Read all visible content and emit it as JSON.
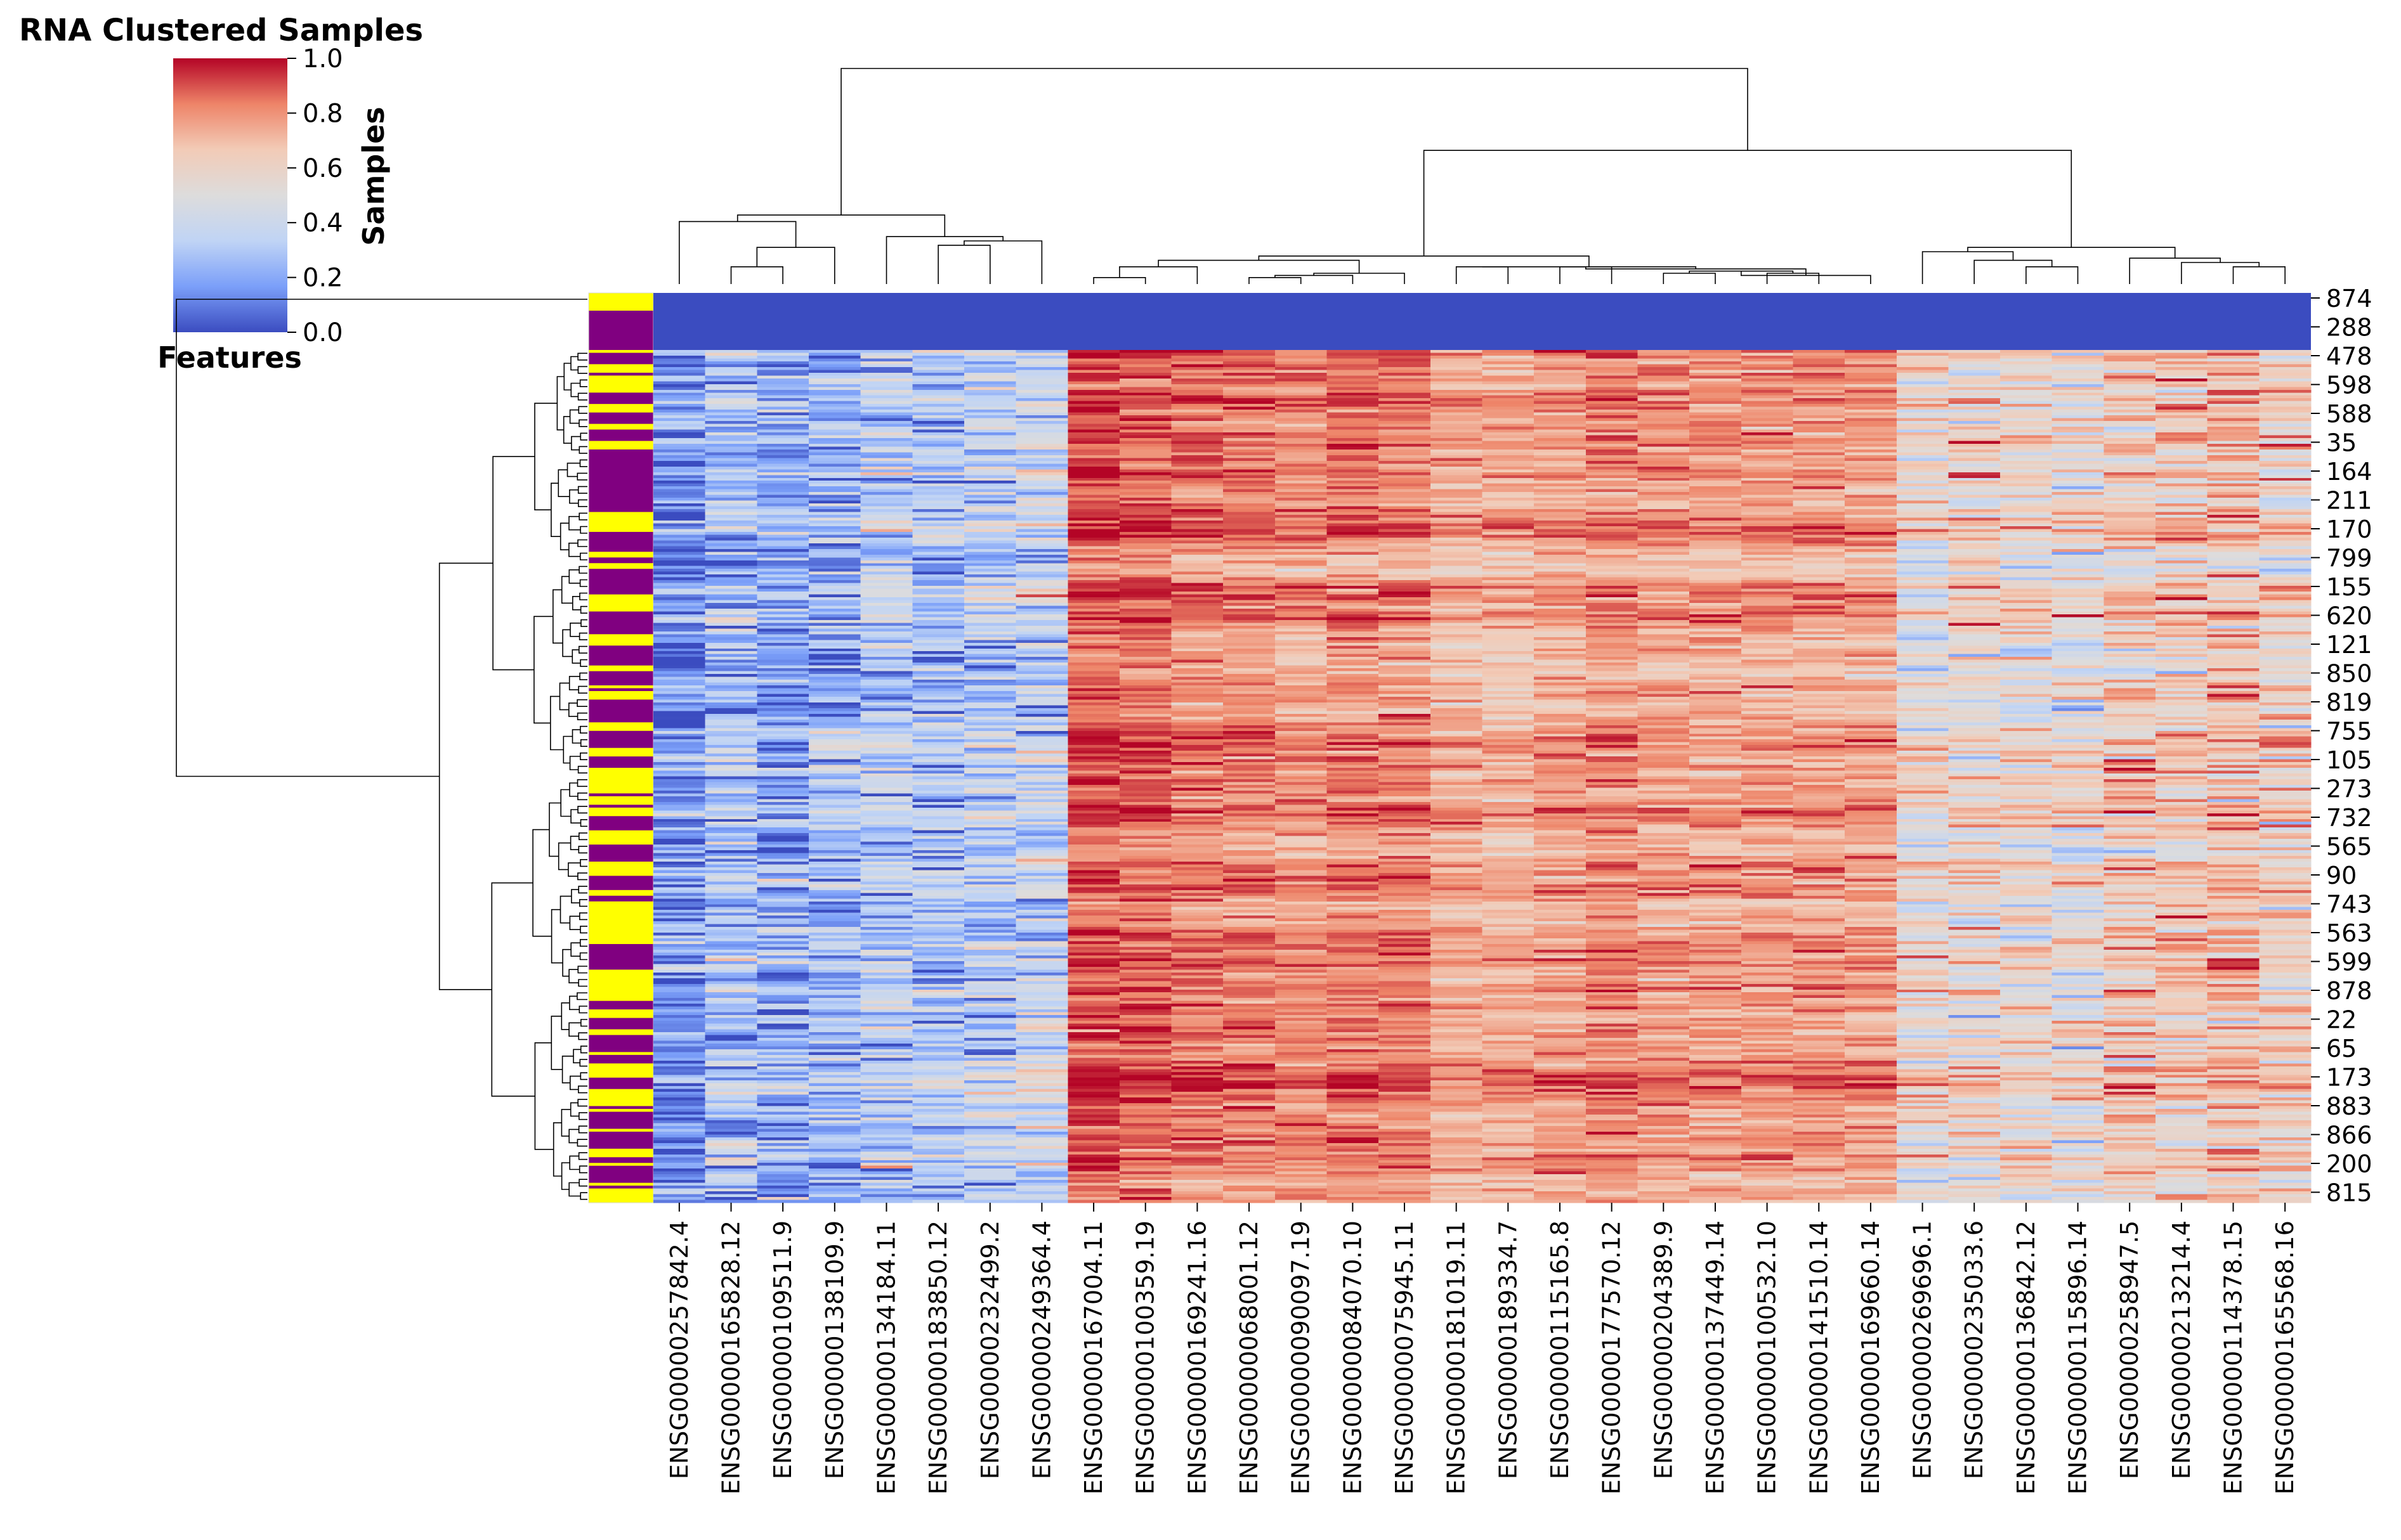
{
  "chart_data": {
    "type": "heatmap",
    "title": "RNA Clustered Samples",
    "xlabel": "Features",
    "ylabel": "Samples",
    "colormap": "coolwarm",
    "colormap_stops": [
      "#3b4cc0",
      "#7b9ff9",
      "#c0d4f5",
      "#dddcdc",
      "#f2cbb7",
      "#ee8468",
      "#b40426"
    ],
    "annotation_colors": {
      "group_a": "#ffff00",
      "group_b": "#800080"
    },
    "colorbar": {
      "range": [
        0.0,
        1.0
      ],
      "ticks": [
        "0.0",
        "0.2",
        "0.4",
        "0.6",
        "0.8",
        "1.0"
      ]
    },
    "columns": [
      "ENSG00000257842.4",
      "ENSG00000165828.12",
      "ENSG00000109511.9",
      "ENSG00000138109.9",
      "ENSG00000134184.11",
      "ENSG00000183850.12",
      "ENSG00000232499.2",
      "ENSG00000249364.4",
      "ENSG00000167004.11",
      "ENSG00000100359.19",
      "ENSG00000169241.16",
      "ENSG00000068001.12",
      "ENSG00000090097.19",
      "ENSG00000084070.10",
      "ENSG00000075945.11",
      "ENSG00000181019.11",
      "ENSG00000189334.7",
      "ENSG00000115165.8",
      "ENSG00000177570.12",
      "ENSG00000204389.9",
      "ENSG00000137449.14",
      "ENSG00000100532.10",
      "ENSG00000141510.14",
      "ENSG00000169660.14",
      "ENSG00000269696.1",
      "ENSG00000235033.6",
      "ENSG00000136842.12",
      "ENSG00000115896.14",
      "ENSG00000258947.5",
      "ENSG00000213214.4",
      "ENSG00000114378.15",
      "ENSG00000165568.16"
    ],
    "column_mean_values": [
      0.15,
      0.28,
      0.22,
      0.25,
      0.33,
      0.3,
      0.36,
      0.4,
      0.9,
      0.88,
      0.84,
      0.83,
      0.8,
      0.84,
      0.82,
      0.74,
      0.73,
      0.77,
      0.81,
      0.78,
      0.77,
      0.78,
      0.78,
      0.77,
      0.55,
      0.58,
      0.57,
      0.55,
      0.66,
      0.64,
      0.68,
      0.63
    ],
    "row_labels": [
      "874",
      "288",
      "478",
      "598",
      "588",
      "35",
      "164",
      "211",
      "170",
      "799",
      "155",
      "620",
      "121",
      "850",
      "819",
      "755",
      "105",
      "273",
      "732",
      "565",
      "90",
      "743",
      "563",
      "599",
      "878",
      "22",
      "65",
      "173",
      "883",
      "866",
      "200",
      "815"
    ]
  }
}
